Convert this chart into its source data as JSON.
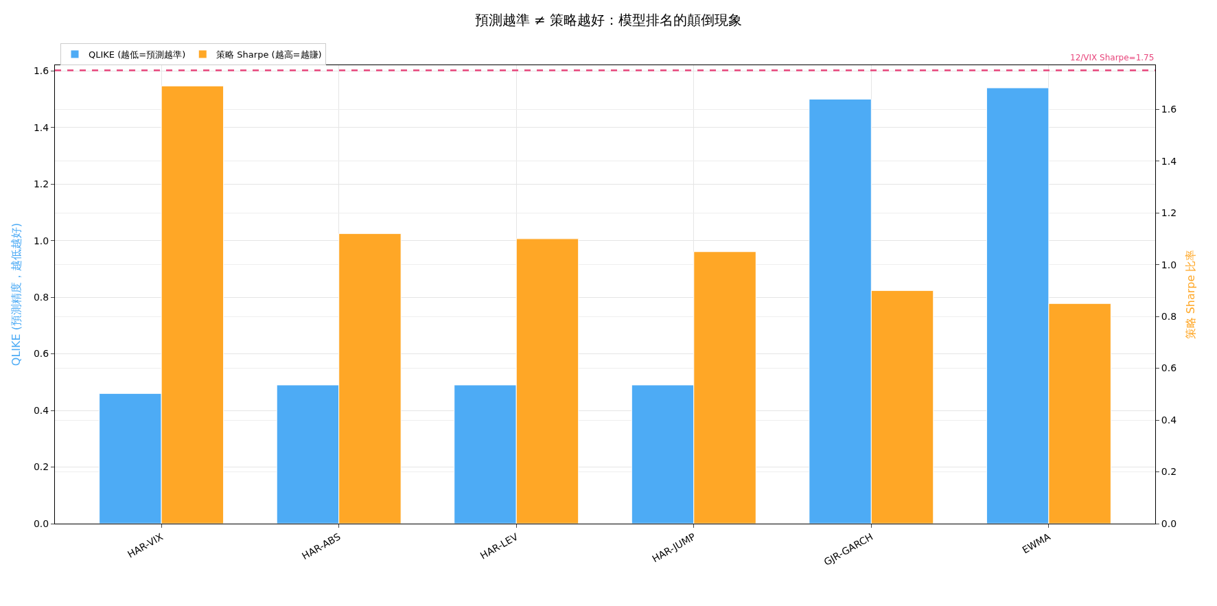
{
  "chart_data": {
    "type": "bar",
    "title": "預測越準 ≠ 策略越好：模型排名的顛倒現象",
    "categories": [
      "HAR-VIX",
      "HAR-ABS",
      "HAR-LEV",
      "HAR-JUMP",
      "GJR-GARCH",
      "EWMA"
    ],
    "series": [
      {
        "name": "QLIKE (越低=預測越準)",
        "color": "#4dabf5",
        "values": [
          0.46,
          0.49,
          0.49,
          0.49,
          1.5,
          1.54
        ]
      },
      {
        "name": "策略 Sharpe (越高=越賺)",
        "color": "#ffa726",
        "axis": "y2",
        "values": [
          1.69,
          1.12,
          1.1,
          1.05,
          0.9,
          0.85
        ]
      }
    ],
    "ylabel": "QLIKE (預測精度，越低越好)",
    "y2label": "策略 Sharpe 比率",
    "ylim": [
      0,
      1.62
    ],
    "yticks": [
      {
        "value": 0,
        "label": "0.0"
      },
      0.2,
      0.4,
      0.6,
      0.8,
      {
        "value": 1,
        "label": "1.0"
      },
      1.2,
      1.4,
      1.6
    ],
    "y2lim": [
      0,
      1.77
    ],
    "y2ticks": [
      {
        "value": 0,
        "label": "0.0"
      },
      0.2,
      0.4,
      0.6,
      0.8,
      {
        "value": 1,
        "label": "1.0"
      },
      1.2,
      1.4,
      1.6
    ],
    "ref_lines": [
      {
        "axis": "y2",
        "value": 1.75,
        "label": "12/VIX Sharpe=1.75",
        "color": "#e8467c",
        "line_style": "dashed"
      }
    ],
    "grid": true,
    "legend": "top left"
  }
}
